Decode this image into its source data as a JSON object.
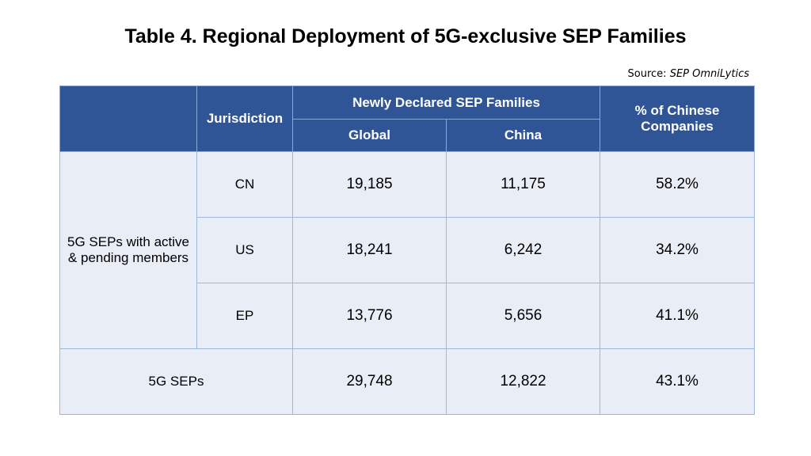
{
  "title": "Table 4. Regional Deployment of 5G-exclusive SEP Families",
  "source": {
    "label": "Source:",
    "name": "SEP OmniLytics"
  },
  "table": {
    "headers": {
      "jurisdiction": "Jurisdiction",
      "group": "Newly Declared SEP Families",
      "global": "Global",
      "china": "China",
      "share": "% of Chinese Companies"
    },
    "group_label": "5G SEPs with active & pending members",
    "rows": [
      [
        "CN",
        "19,185",
        "11,175",
        "58.2%"
      ],
      [
        "US",
        "18,241",
        "6,242",
        "34.2%"
      ],
      [
        "EP",
        "13,776",
        "5,656",
        "41.1%"
      ]
    ],
    "total": [
      "5G SEPs",
      "29,748",
      "12,822",
      "43.1%"
    ]
  }
}
